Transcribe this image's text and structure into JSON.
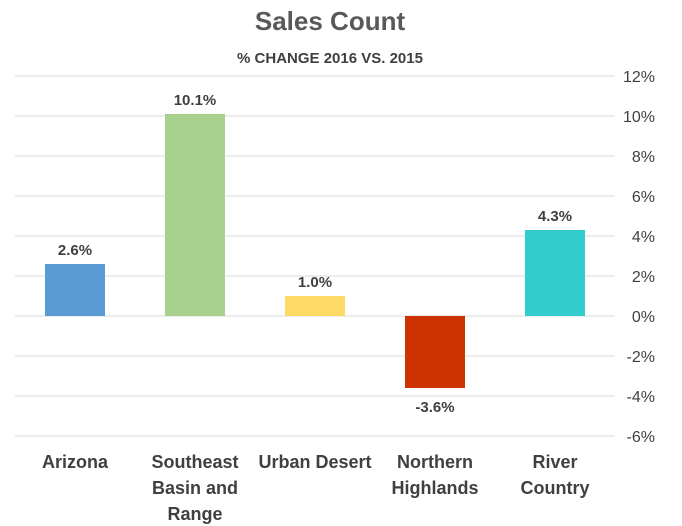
{
  "chart_data": {
    "type": "bar",
    "title": "Sales Count",
    "subtitle": "% CHANGE 2016 VS. 2015",
    "categories": [
      "Arizona",
      "Southeast Basin and Range",
      "Urban Desert",
      "Northern Highlands",
      "River Country"
    ],
    "category_lines": [
      [
        "Arizona"
      ],
      [
        "Southeast",
        "Basin and",
        "Range"
      ],
      [
        "Urban Desert"
      ],
      [
        "Northern",
        "Highlands"
      ],
      [
        "River",
        "Country"
      ]
    ],
    "values": [
      2.6,
      10.1,
      1.0,
      -3.6,
      4.3
    ],
    "data_labels": [
      "2.6%",
      "10.1%",
      "1.0%",
      "-3.6%",
      "4.3%"
    ],
    "bar_colors": [
      "#5B9BD5",
      "#A9D18E",
      "#FFD966",
      "#CC3300",
      "#33CCCC"
    ],
    "ylim": [
      -6,
      12
    ],
    "yticks": [
      12,
      10,
      8,
      6,
      4,
      2,
      0,
      -2,
      -4,
      -6
    ],
    "ytick_labels": [
      "12%",
      "10%",
      "8%",
      "6%",
      "4%",
      "2%",
      "0%",
      "-2%",
      "-4%",
      "-6%"
    ],
    "y_axis_side": "right",
    "grid": true,
    "grid_color": "#D9D9D9"
  }
}
